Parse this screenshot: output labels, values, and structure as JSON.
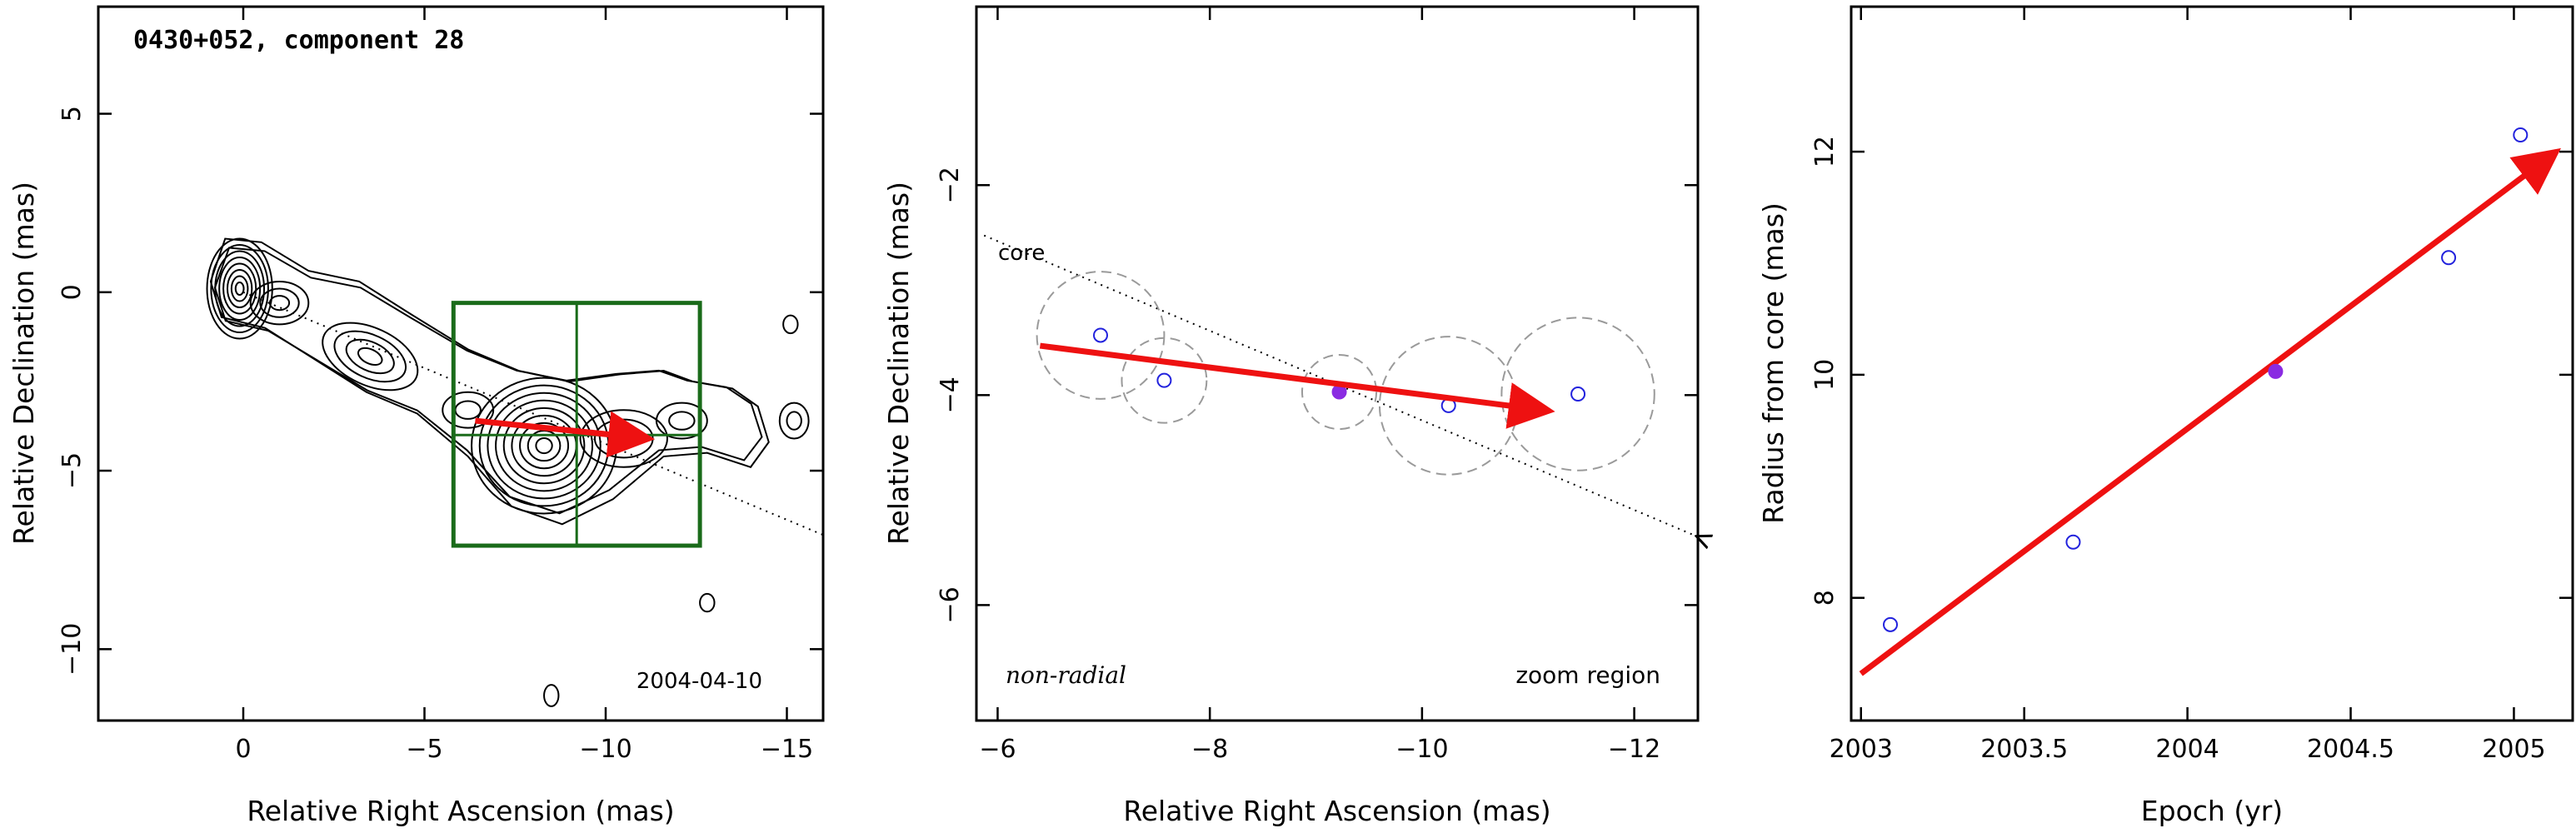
{
  "chart_data": [
    {
      "type": "contour",
      "panel": "left",
      "title": "0430+052, component 28",
      "annotation": "2004-04-10",
      "xlabel": "Relative Right Ascension (mas)",
      "ylabel": "Relative Declination (mas)",
      "xlim": [
        4,
        -16
      ],
      "ylim": [
        -12,
        8
      ],
      "xticks": [
        0,
        -5,
        -10,
        -15
      ],
      "yticks": [
        5,
        0,
        -5,
        -10
      ],
      "xtick_labels": [
        "0",
        "−5",
        "−10",
        "−15"
      ],
      "ytick_labels": [
        "5",
        "0",
        "−5",
        "−10"
      ],
      "zoom_box": {
        "x": [
          -5.8,
          -12.6
        ],
        "y": [
          -0.3,
          -7.1
        ],
        "crosshair": [
          -9.2,
          -4.0
        ]
      },
      "motion_arrow": {
        "from": [
          -6.4,
          -3.6
        ],
        "to": [
          -11.2,
          -4.1
        ],
        "color": "#ee1111"
      },
      "core_line": {
        "from": [
          0,
          0
        ],
        "to": [
          -16,
          -6.8
        ]
      }
    },
    {
      "type": "scatter",
      "panel": "middle",
      "xlabel": "Relative Right Ascension (mas)",
      "ylabel": "Relative Declination (mas)",
      "xlim": [
        -5.8,
        -12.6
      ],
      "ylim": [
        -7.1,
        -0.3
      ],
      "xticks": [
        -6,
        -8,
        -10,
        -12
      ],
      "yticks": [
        -2,
        -4,
        -6
      ],
      "xtick_labels": [
        "−6",
        "−8",
        "−10",
        "−12"
      ],
      "ytick_labels": [
        "−2",
        "−4",
        "−6"
      ],
      "core_label": "core",
      "bottom_left_label": "non-radial",
      "bottom_right_label": "zoom region",
      "points": [
        {
          "x": -6.97,
          "y": -3.43,
          "size": 0.6,
          "filled": false
        },
        {
          "x": -7.57,
          "y": -3.86,
          "size": 0.4,
          "filled": false
        },
        {
          "x": -9.22,
          "y": -3.97,
          "size": 0.35,
          "filled": true
        },
        {
          "x": -10.25,
          "y": -4.1,
          "size": 0.65,
          "filled": false
        },
        {
          "x": -11.47,
          "y": -3.99,
          "size": 0.72,
          "filled": false
        }
      ],
      "motion_arrow": {
        "from": [
          -6.4,
          -3.53
        ],
        "to": [
          -11.2,
          -4.15
        ],
        "color": "#ee1111"
      },
      "core_line": {
        "from": [
          -5.85,
          -2.47
        ],
        "to": [
          -12.6,
          -5.35
        ]
      },
      "point_color": "#2222dd",
      "filled_color": "#8a2be2"
    },
    {
      "type": "scatter",
      "panel": "right",
      "xlabel": "Epoch (yr)",
      "ylabel": "Radius from core (mas)",
      "xlim": [
        2002.97,
        2005.18
      ],
      "ylim": [
        6.9,
        13.3
      ],
      "xticks": [
        2003,
        2003.5,
        2004,
        2004.5,
        2005
      ],
      "yticks": [
        8,
        10,
        12
      ],
      "xtick_labels": [
        "2003",
        "2003.5",
        "2004",
        "2004.5",
        "2005"
      ],
      "ytick_labels": [
        "8",
        "10",
        "12"
      ],
      "points": [
        {
          "x": 2003.09,
          "y": 7.76,
          "filled": false
        },
        {
          "x": 2003.65,
          "y": 8.5,
          "filled": false
        },
        {
          "x": 2004.27,
          "y": 10.03,
          "filled": true
        },
        {
          "x": 2004.8,
          "y": 11.05,
          "filled": false
        },
        {
          "x": 2005.02,
          "y": 12.15,
          "filled": false
        }
      ],
      "fit_arrow": {
        "from": [
          2003.0,
          7.32
        ],
        "to": [
          2005.13,
          12.0
        ],
        "color": "#ee1111"
      },
      "point_color": "#2222dd",
      "filled_color": "#8a2be2"
    }
  ]
}
